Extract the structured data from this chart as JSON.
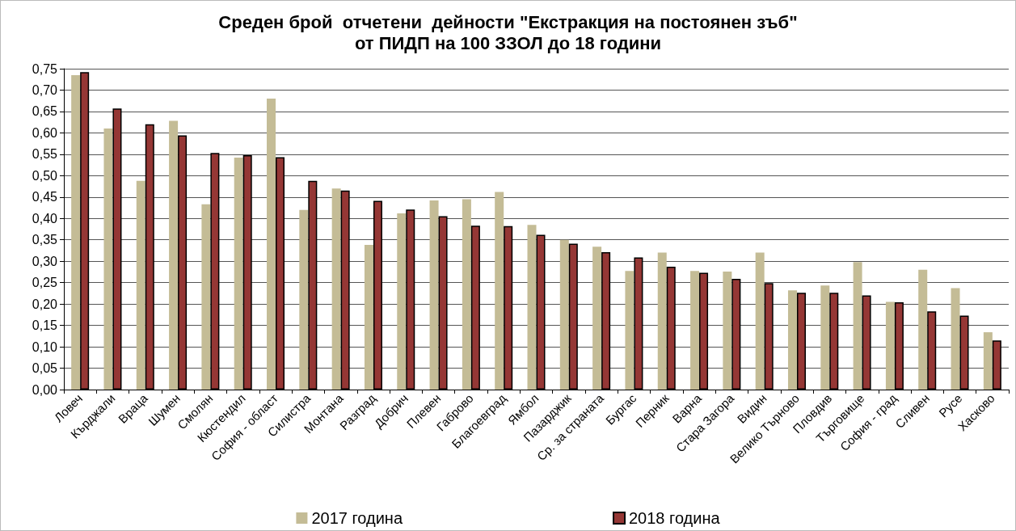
{
  "chart_data": {
    "type": "bar",
    "title": "Среден брой  отчетени  дейности \"Екстракция на постоянен зъб\"\nот ПИДП на 100 ЗЗОЛ до 18 години",
    "categories": [
      "Ловеч",
      "Кърджали",
      "Враца",
      "Шумен",
      "Смолян",
      "Кюстендил",
      "София - област",
      "Силистра",
      "Монтана",
      "Разград",
      "Добрич",
      "Плевен",
      "Габрово",
      "Благоевград",
      "Ямбол",
      "Пазарджик",
      "Ср. за страната",
      "Бургас",
      "Перник",
      "Варна",
      "Стара Загора",
      "Видин",
      "Велико Търново",
      "Пловдив",
      "Търговище",
      "София - град",
      "Сливен",
      "Русе",
      "Хасково"
    ],
    "series": [
      {
        "name": "2017 година",
        "color": "#c4bc96",
        "values": [
          0.735,
          0.61,
          0.488,
          0.628,
          0.433,
          0.542,
          0.68,
          0.42,
          0.47,
          0.338,
          0.412,
          0.442,
          0.445,
          0.462,
          0.385,
          0.35,
          0.334,
          0.277,
          0.32,
          0.277,
          0.276,
          0.32,
          0.232,
          0.243,
          0.298,
          0.205,
          0.28,
          0.237,
          0.134
        ]
      },
      {
        "name": "2018 година",
        "color": "#953735",
        "values": [
          0.742,
          0.657,
          0.62,
          0.594,
          0.553,
          0.548,
          0.543,
          0.488,
          0.465,
          0.441,
          0.421,
          0.405,
          0.383,
          0.382,
          0.362,
          0.341,
          0.321,
          0.309,
          0.287,
          0.273,
          0.259,
          0.249,
          0.226,
          0.226,
          0.22,
          0.204,
          0.183,
          0.173,
          0.115
        ]
      }
    ],
    "ylim": [
      0,
      0.75
    ],
    "yticks": [
      {
        "value": 0,
        "label": "0,00"
      },
      {
        "value": 0.05,
        "label": "0,05"
      },
      {
        "value": 0.1,
        "label": "0,10"
      },
      {
        "value": 0.15,
        "label": "0,15"
      },
      {
        "value": 0.2,
        "label": "0,20"
      },
      {
        "value": 0.25,
        "label": "0,25"
      },
      {
        "value": 0.3,
        "label": "0,30"
      },
      {
        "value": 0.35,
        "label": "0,35"
      },
      {
        "value": 0.4,
        "label": "0,40"
      },
      {
        "value": 0.45,
        "label": "0,45"
      },
      {
        "value": 0.5,
        "label": "0,50"
      },
      {
        "value": 0.55,
        "label": "0,55"
      },
      {
        "value": 0.6,
        "label": "0,60"
      },
      {
        "value": 0.65,
        "label": "0,65"
      },
      {
        "value": 0.7,
        "label": "0,70"
      },
      {
        "value": 0.75,
        "label": "0,75"
      }
    ],
    "grid": "y",
    "legend": "bottom"
  }
}
